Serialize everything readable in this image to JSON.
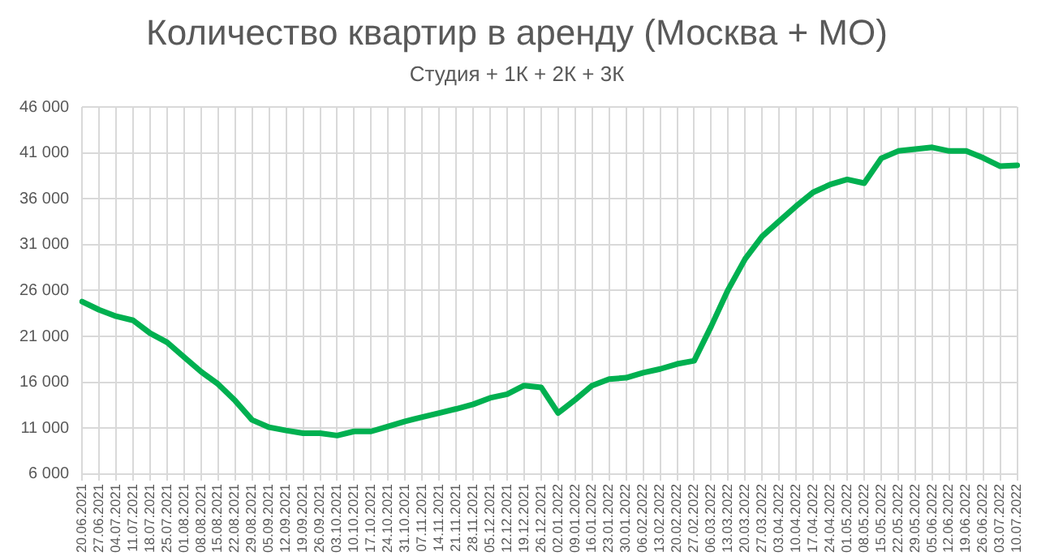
{
  "chart_data": {
    "type": "line",
    "title": "Количество квартир в аренду (Москва + МО)",
    "subtitle": "Студия + 1К + 2К + 3К",
    "categories": [
      "20.06.2021",
      "27.06.2021",
      "04.07.2021",
      "11.07.2021",
      "18.07.2021",
      "25.07.2021",
      "01.08.2021",
      "08.08.2021",
      "15.08.2021",
      "22.08.2021",
      "29.08.2021",
      "05.09.2021",
      "12.09.2021",
      "19.09.2021",
      "26.09.2021",
      "03.10.2021",
      "10.10.2021",
      "17.10.2021",
      "24.10.2021",
      "31.10.2021",
      "07.11.2021",
      "14.11.2021",
      "21.11.2021",
      "28.11.2021",
      "05.12.2021",
      "12.12.2021",
      "19.12.2021",
      "26.12.2021",
      "02.01.2022",
      "09.01.2022",
      "16.01.2022",
      "23.01.2022",
      "30.01.2022",
      "06.02.2022",
      "13.02.2022",
      "20.02.2022",
      "27.02.2022",
      "06.03.2022",
      "13.03.2022",
      "20.03.2022",
      "27.03.2022",
      "03.04.2022",
      "10.04.2022",
      "17.04.2022",
      "24.04.2022",
      "01.05.2022",
      "08.05.2022",
      "15.05.2022",
      "22.05.2022",
      "29.05.2022",
      "05.06.2022",
      "12.06.2022",
      "19.06.2022",
      "26.06.2022",
      "03.07.2022",
      "10.07.2022"
    ],
    "series": [
      {
        "color": "#00b050",
        "values": [
          24800,
          23900,
          23200,
          22750,
          21350,
          20350,
          18750,
          17150,
          15800,
          14000,
          11900,
          11100,
          10750,
          10450,
          10450,
          10200,
          10650,
          10650,
          11200,
          11750,
          12200,
          12650,
          13100,
          13600,
          14300,
          14700,
          15650,
          15450,
          12650,
          14100,
          15650,
          16350,
          16500,
          17050,
          17450,
          18000,
          18350,
          22100,
          26100,
          29450,
          31900,
          33550,
          35200,
          36700,
          37550,
          38100,
          37700,
          40400,
          41200,
          41400,
          41600,
          41200,
          41200,
          40450,
          39550,
          39650
        ]
      }
    ],
    "ylim": [
      6000,
      46000
    ],
    "yticks": [
      {
        "value": 6000,
        "label": "6 000"
      },
      {
        "value": 11000,
        "label": "11 000"
      },
      {
        "value": 16000,
        "label": "16 000"
      },
      {
        "value": 21000,
        "label": "21 000"
      },
      {
        "value": 26000,
        "label": "26 000"
      },
      {
        "value": 31000,
        "label": "31 000"
      },
      {
        "value": 36000,
        "label": "36 000"
      },
      {
        "value": 41000,
        "label": "41 000"
      },
      {
        "value": 46000,
        "label": "46 000"
      }
    ],
    "grid": true,
    "legend": false,
    "marker": "none",
    "line_style": "solid"
  }
}
